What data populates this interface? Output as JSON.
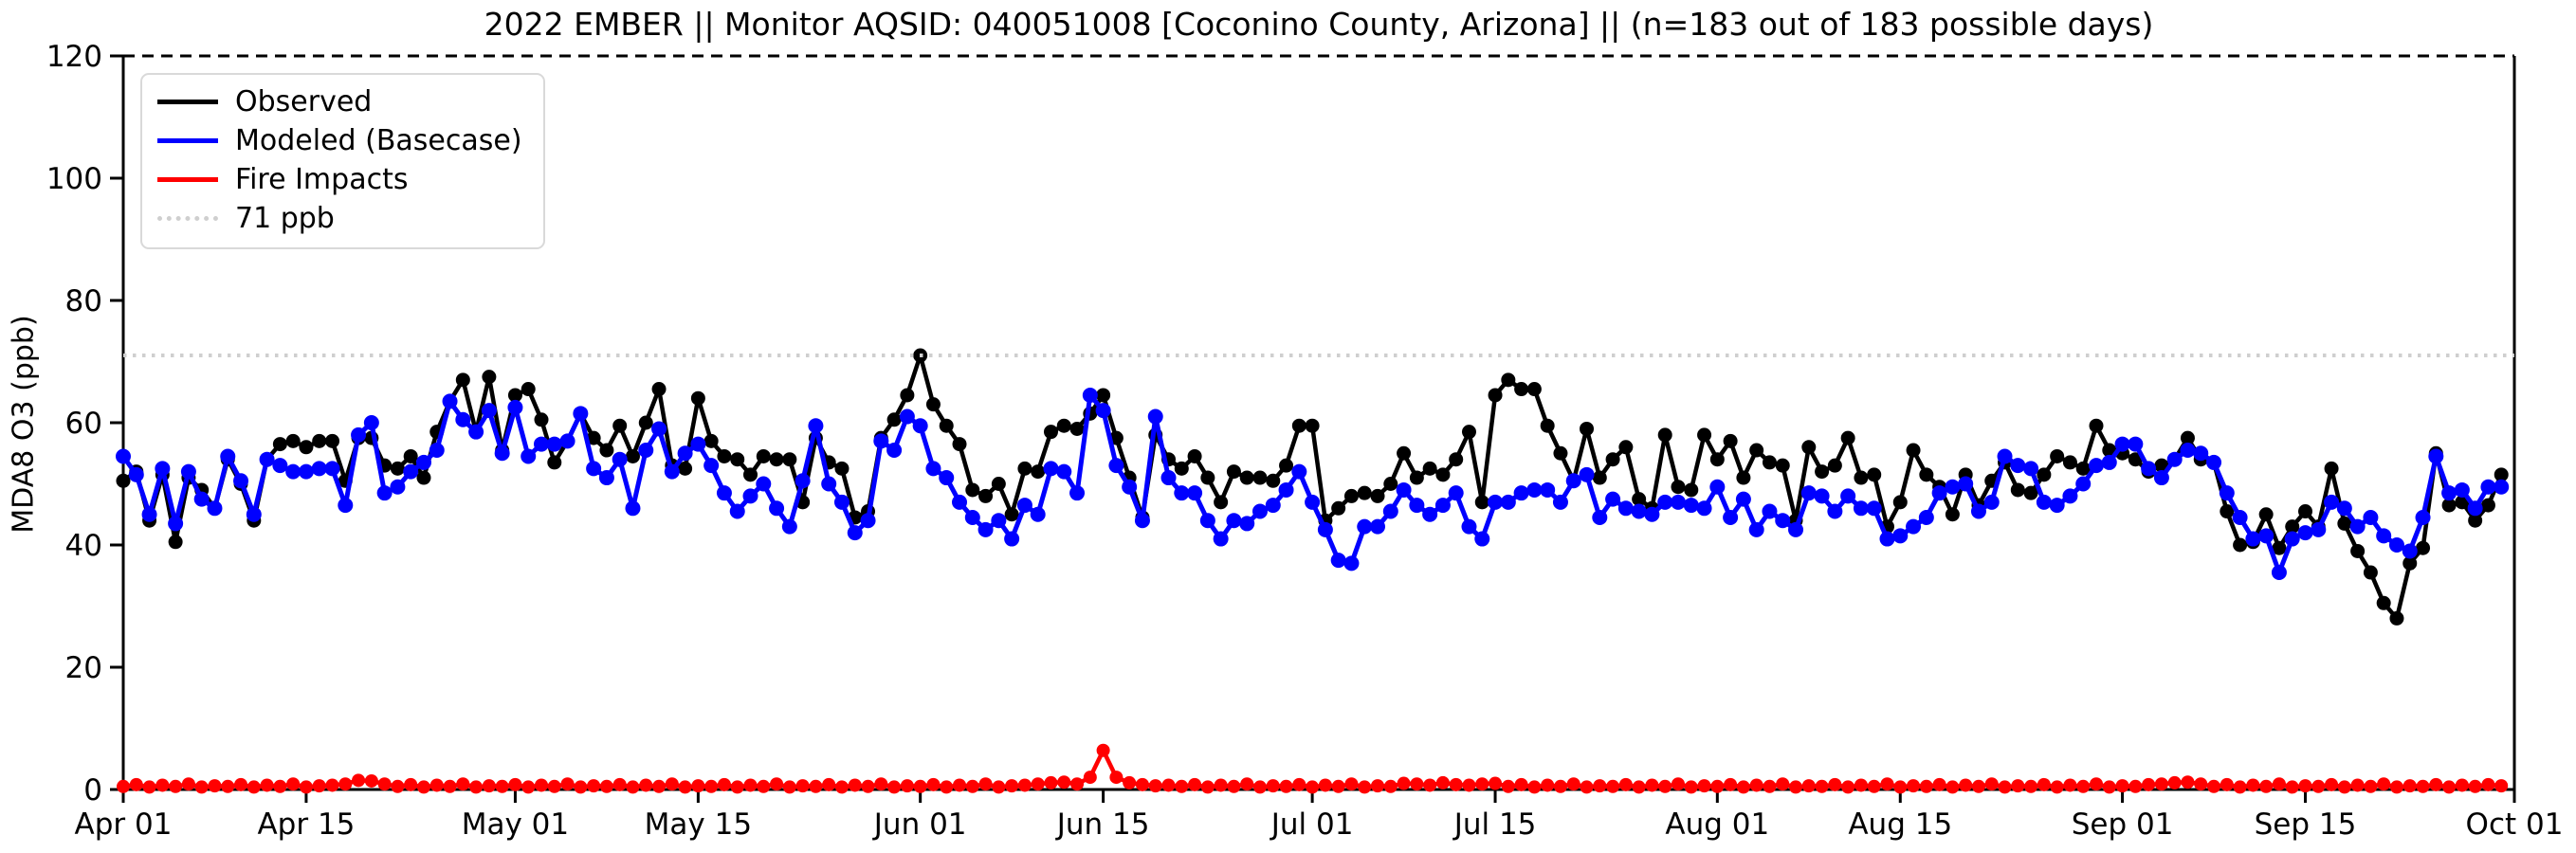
{
  "chart_data": {
    "type": "line",
    "title": "2022 EMBER || Monitor AQSID: 040051008 [Coconino County, Arizona] || (n=183 out of 183 possible days)",
    "ylabel": "MDA8 O3 (ppb)",
    "xlabel": "",
    "ylim": [
      0,
      120
    ],
    "y_ticks": [
      0,
      20,
      40,
      60,
      80,
      100,
      120
    ],
    "x_tick_labels": [
      "Apr 01",
      "Apr 15",
      "May 01",
      "May 15",
      "Jun 01",
      "Jun 15",
      "Jul 01",
      "Jul 15",
      "Aug 01",
      "Aug 15",
      "Sep 01",
      "Sep 15",
      "Oct 01"
    ],
    "x_tick_days": [
      0,
      14,
      30,
      44,
      61,
      75,
      91,
      105,
      122,
      136,
      153,
      167,
      183
    ],
    "x_range_days": 183,
    "grid": false,
    "legend_position": "upper left",
    "threshold": {
      "value": 71,
      "label": "71 ppb",
      "color": "#cfcfcf"
    },
    "legend": [
      {
        "label": "Observed",
        "color": "#000000",
        "style": "solid"
      },
      {
        "label": "Modeled (Basecase)",
        "color": "#0000ff",
        "style": "solid"
      },
      {
        "label": "Fire Impacts",
        "color": "#ff0000",
        "style": "solid"
      },
      {
        "label": "71 ppb",
        "color": "#cfcfcf",
        "style": "dotted"
      }
    ],
    "series": [
      {
        "name": "Observed",
        "color": "#000000",
        "marker_radius": 7.5,
        "line_width": 4.5,
        "values": [
          50.5,
          52,
          44,
          51.5,
          40.5,
          51,
          49,
          46,
          54,
          50,
          44,
          54,
          56.5,
          57,
          56,
          57,
          57,
          50.5,
          57.5,
          57.5,
          53,
          52.5,
          54.5,
          51,
          58.5,
          63.5,
          67,
          58.5,
          67.5,
          55.5,
          64.5,
          65.5,
          60.5,
          53.5,
          57,
          61.5,
          57.5,
          55.5,
          59.5,
          54.5,
          60,
          65.5,
          53,
          52.5,
          64,
          57,
          54.5,
          54,
          51.5,
          54.5,
          54,
          54,
          47,
          57.5,
          53.5,
          52.5,
          44.5,
          45.5,
          57.5,
          60.5,
          64.5,
          71,
          63,
          59.5,
          56.5,
          49,
          48,
          50,
          45,
          52.5,
          52,
          58.5,
          59.5,
          59,
          61.5,
          64.5,
          57.5,
          51,
          44.5,
          58,
          54,
          52.5,
          54.5,
          51,
          47,
          52,
          51,
          51,
          50.5,
          53,
          59.5,
          59.5,
          44,
          46,
          48,
          48.5,
          48,
          50,
          55,
          51,
          52.5,
          51.5,
          54,
          58.5,
          47,
          64.5,
          67,
          65.5,
          65.5,
          59.5,
          55,
          50.5,
          59,
          51,
          54,
          56,
          47.5,
          46,
          58,
          49.5,
          49,
          58,
          54,
          57,
          51,
          55.5,
          53.5,
          53,
          44,
          56,
          52,
          53,
          57.5,
          51,
          51.5,
          43,
          47,
          55.5,
          51.5,
          49.5,
          45,
          51.5,
          46.5,
          50.5,
          53.5,
          49,
          48.5,
          51.5,
          54.5,
          53.5,
          52.5,
          59.5,
          55.5,
          55,
          54,
          52,
          53,
          54,
          57.5,
          54,
          53.5,
          45.5,
          40,
          40.5,
          45,
          39.5,
          43,
          45.5,
          43,
          52.5,
          43.5,
          39,
          35.5,
          30.5,
          28,
          37,
          39.5,
          55,
          46.5,
          47,
          44,
          46.5,
          51.5
        ]
      },
      {
        "name": "Modeled (Basecase)",
        "color": "#0000ff",
        "marker_radius": 8,
        "line_width": 5,
        "values": [
          54.5,
          51.5,
          45,
          52.5,
          43.5,
          52,
          47.5,
          46,
          54.5,
          50.5,
          45,
          54,
          53,
          52,
          52,
          52.5,
          52.5,
          46.5,
          58,
          60,
          48.5,
          49.5,
          52,
          53.5,
          55.5,
          63.5,
          60.5,
          58.5,
          62,
          55,
          62.5,
          54.5,
          56.5,
          56.5,
          57,
          61.5,
          52.5,
          51,
          54,
          46,
          55.5,
          59,
          52,
          55,
          56.5,
          53,
          48.5,
          45.5,
          48,
          50,
          46,
          43,
          50.5,
          59.5,
          50,
          47,
          42,
          44,
          57,
          55.5,
          61,
          59.5,
          52.5,
          51,
          47,
          44.5,
          42.5,
          44,
          41,
          46.5,
          45,
          52.5,
          52,
          48.5,
          64.5,
          62,
          53,
          49.5,
          44,
          61,
          51,
          48.5,
          48.5,
          44,
          41,
          44,
          43.5,
          45.5,
          46.5,
          49,
          52,
          47,
          42.5,
          37.5,
          37,
          43,
          43,
          45.5,
          49,
          46.5,
          45,
          46.5,
          48.5,
          43,
          41,
          47,
          47,
          48.5,
          49,
          49,
          47,
          50.5,
          51.5,
          44.5,
          47.5,
          46,
          45.5,
          45,
          47,
          47,
          46.5,
          46,
          49.5,
          44.5,
          47.5,
          42.5,
          45.5,
          44,
          42.5,
          48.5,
          48,
          45.5,
          48,
          46,
          46,
          41,
          41.5,
          43,
          44.5,
          48.5,
          49.5,
          50,
          45.5,
          47,
          54.5,
          53,
          52.5,
          47,
          46.5,
          48,
          50,
          53,
          53.5,
          56.5,
          56.5,
          52.5,
          51,
          54,
          55.5,
          55,
          53.5,
          48.5,
          44.5,
          41,
          41.5,
          35.5,
          41,
          42,
          42.5,
          47,
          46,
          43,
          44.5,
          41.5,
          40,
          39,
          44.5,
          54.5,
          48.5,
          49,
          46,
          49.5,
          49.5
        ]
      },
      {
        "name": "Fire Impacts",
        "color": "#ff0000",
        "marker_radius": 7,
        "line_width": 4.5,
        "values": [
          0.5,
          0.8,
          0.4,
          0.7,
          0.5,
          0.9,
          0.4,
          0.6,
          0.5,
          0.8,
          0.4,
          0.7,
          0.5,
          0.9,
          0.4,
          0.6,
          0.7,
          0.9,
          1.5,
          1.4,
          0.9,
          0.5,
          0.8,
          0.4,
          0.7,
          0.5,
          0.9,
          0.4,
          0.6,
          0.5,
          0.8,
          0.4,
          0.7,
          0.5,
          0.9,
          0.4,
          0.6,
          0.5,
          0.8,
          0.4,
          0.7,
          0.5,
          0.9,
          0.4,
          0.6,
          0.5,
          0.8,
          0.4,
          0.7,
          0.5,
          0.9,
          0.4,
          0.6,
          0.5,
          0.8,
          0.4,
          0.7,
          0.5,
          0.9,
          0.4,
          0.6,
          0.5,
          0.8,
          0.4,
          0.7,
          0.5,
          0.9,
          0.4,
          0.6,
          0.7,
          0.9,
          1.1,
          1.2,
          0.9,
          2.0,
          6.4,
          2.0,
          1.1,
          0.8,
          0.6,
          0.7,
          0.5,
          0.8,
          0.4,
          0.7,
          0.5,
          0.9,
          0.4,
          0.6,
          0.5,
          0.8,
          0.4,
          0.7,
          0.5,
          0.9,
          0.4,
          0.6,
          0.5,
          1.0,
          0.9,
          0.7,
          1.1,
          0.8,
          0.7,
          0.9,
          1.0,
          0.5,
          0.8,
          0.4,
          0.7,
          0.5,
          0.9,
          0.4,
          0.6,
          0.5,
          0.8,
          0.4,
          0.7,
          0.5,
          0.9,
          0.4,
          0.6,
          0.5,
          0.8,
          0.4,
          0.7,
          0.5,
          0.9,
          0.4,
          0.6,
          0.5,
          0.8,
          0.4,
          0.7,
          0.5,
          0.9,
          0.4,
          0.6,
          0.5,
          0.8,
          0.4,
          0.7,
          0.5,
          0.9,
          0.4,
          0.6,
          0.5,
          0.8,
          0.4,
          0.7,
          0.5,
          0.9,
          0.4,
          0.6,
          0.5,
          0.8,
          0.9,
          1.1,
          1.2,
          0.9,
          0.5,
          0.8,
          0.4,
          0.7,
          0.5,
          0.9,
          0.4,
          0.6,
          0.5,
          0.8,
          0.4,
          0.7,
          0.5,
          0.9,
          0.4,
          0.6,
          0.5,
          0.8,
          0.4,
          0.7,
          0.5,
          0.8,
          0.6
        ]
      }
    ]
  }
}
